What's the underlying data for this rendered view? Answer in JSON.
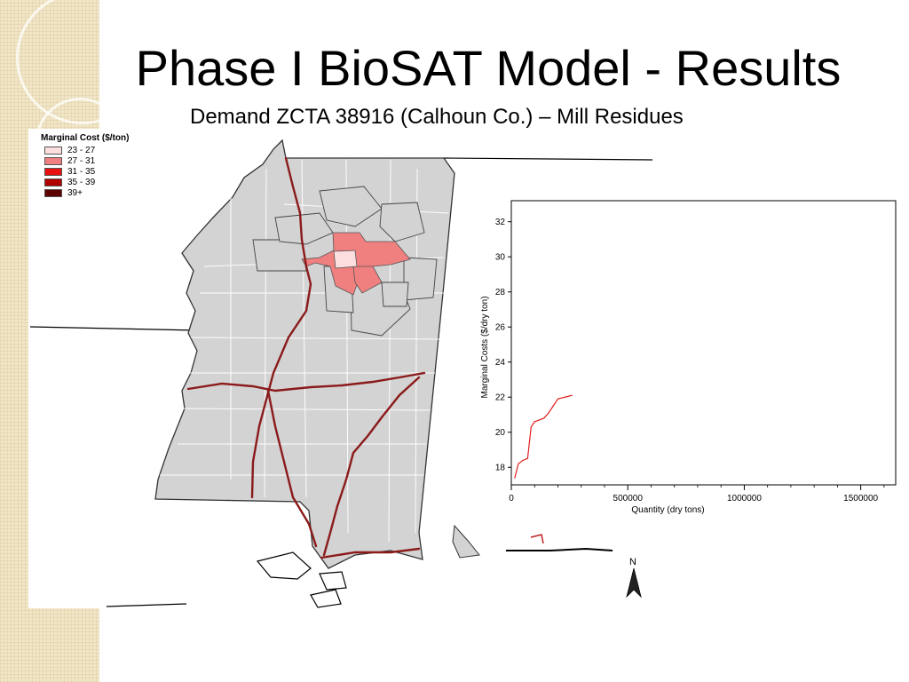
{
  "slide": {
    "title": "Phase I BioSAT Model - Results",
    "subtitle": "Demand ZCTA 38916 (Calhoun Co.) – Mill Residues"
  },
  "legend": {
    "title": "Marginal Cost ($/ton)",
    "items": [
      {
        "label": "23 - 27",
        "color": "#fcdede"
      },
      {
        "label": "27 - 31",
        "color": "#f08080"
      },
      {
        "label": "31 - 35",
        "color": "#e81010"
      },
      {
        "label": "35 - 39",
        "color": "#b00000"
      },
      {
        "label": "39+",
        "color": "#5c0000"
      }
    ]
  },
  "map": {
    "state_fill": "#d3d3d3",
    "road_color": "#8b1a1a",
    "highlight_color": "#f08080",
    "center_color": "#fcdede",
    "north_label": "N"
  },
  "chart_data": {
    "type": "line",
    "xlabel": "Quantity (dry tons)",
    "ylabel": "Marginal Costs ($/dry ton)",
    "xlim": [
      0,
      1650000
    ],
    "ylim": [
      17,
      33.2
    ],
    "xticks": [
      0,
      500000,
      1000000,
      1500000
    ],
    "yticks": [
      18,
      20,
      22,
      24,
      26,
      28,
      30,
      32
    ],
    "grid": false,
    "series": [
      {
        "color": "#e02020",
        "x": [
          15000,
          30000,
          50000,
          70000,
          85000,
          100000,
          120000,
          140000,
          160000,
          180000,
          200000,
          230000,
          260000
        ],
        "y": [
          17.4,
          18.2,
          18.4,
          18.5,
          20.3,
          20.6,
          20.7,
          20.8,
          21.1,
          21.5,
          21.9,
          22.0,
          22.1
        ]
      }
    ]
  }
}
